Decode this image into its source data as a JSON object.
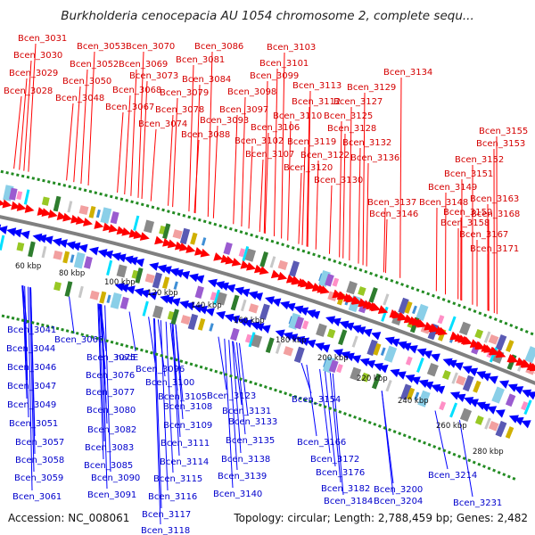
{
  "title": "Burkholderia cenocepacia AU 1054 chromosome 2, complete sequ...",
  "accession_text": "Accession: NC_008061",
  "summary_text": "Topology: circular; Length: 2,788,459 bp; Genes: 2,482",
  "colors": {
    "forward": "#ff0000",
    "reverse": "#0000ff",
    "backbone": "#808080",
    "gc_ticks": "#228b22",
    "cog_palette": [
      "#3f8fd6",
      "#8acfe8",
      "#9a5bd0",
      "#ff8fc6",
      "#00e0ff",
      "#8a8a8a",
      "#98c825",
      "#2e7d2e",
      "#c7c7c7",
      "#f2a0a0",
      "#5a5ab4",
      "#d0b000"
    ]
  },
  "kbp_ticks": [
    "60 kbp",
    "80 kbp",
    "100 kbp",
    "120 kbp",
    "140 kbp",
    "160 kbp",
    "180 kbp",
    "200 kbp",
    "220 kbp",
    "240 kbp",
    "260 kbp",
    "280 kbp"
  ],
  "top_labels": [
    "Bcen_3031",
    "Bcen_3030",
    "Bcen_3029",
    "Bcen_3028",
    "Bcen_3053",
    "Bcen_3052",
    "Bcen_3050",
    "Bcen_3048",
    "Bcen_3070",
    "Bcen_3069",
    "Bcen_3073",
    "Bcen_3068",
    "Bcen_3067",
    "Bcen_3086",
    "Bcen_3081",
    "Bcen_3084",
    "Bcen_3079",
    "Bcen_3078",
    "Bcen_3074",
    "Bcen_3093",
    "Bcen_3088",
    "Bcen_3103",
    "Bcen_3101",
    "Bcen_3099",
    "Bcen_3098",
    "Bcen_3097",
    "Bcen_3106",
    "Bcen_3102",
    "Bcen_3107",
    "Bcen_3113",
    "Bcen_3112",
    "Bcen_3110",
    "Bcen_3119",
    "Bcen_3122",
    "Bcen_3120",
    "Bcen_3134",
    "Bcen_3129",
    "Bcen_3127",
    "Bcen_3125",
    "Bcen_3128",
    "Bcen_3132",
    "Bcen_3136",
    "Bcen_3130",
    "Bcen_3137",
    "Bcen_3146",
    "Bcen_3155",
    "Bcen_3153",
    "Bcen_3152",
    "Bcen_3151",
    "Bcen_3149",
    "Bcen_3148",
    "Bcen_3150",
    "Bcen_3163",
    "Bcen_3158",
    "Bcen_3168",
    "Bcen_3167",
    "Bcen_3171"
  ],
  "bottom_labels": [
    "Bcen_3041",
    "Bcen_3044",
    "Bcen_3046",
    "Bcen_3047",
    "Bcen_3049",
    "Bcen_3051",
    "Bcen_3057",
    "Bcen_3058",
    "Bcen_3059",
    "Bcen_3061",
    "Bcen_3066",
    "Bcen_3075",
    "nadE",
    "Bcen_3076",
    "Bcen_3077",
    "Bcen_3080",
    "Bcen_3082",
    "Bcen_3083",
    "Bcen_3085",
    "Bcen_3090",
    "Bcen_3091",
    "Bcen_3096",
    "Bcen_3100",
    "Bcen_3105",
    "Bcen_3108",
    "Bcen_3109",
    "Bcen_3111",
    "Bcen_3114",
    "Bcen_3115",
    "Bcen_3116",
    "Bcen_3117",
    "Bcen_3118",
    "Bcen_3123",
    "Bcen_3131",
    "Bcen_3133",
    "Bcen_3135",
    "Bcen_3138",
    "Bcen_3139",
    "Bcen_3140",
    "Bcen_3154",
    "Bcen_3166",
    "Bcen_3172",
    "Bcen_3176",
    "Bcen_3182",
    "Bcen_3184",
    "Bcen_3200",
    "Bcen_3204",
    "Bcen_3214",
    "Bcen_3231"
  ]
}
